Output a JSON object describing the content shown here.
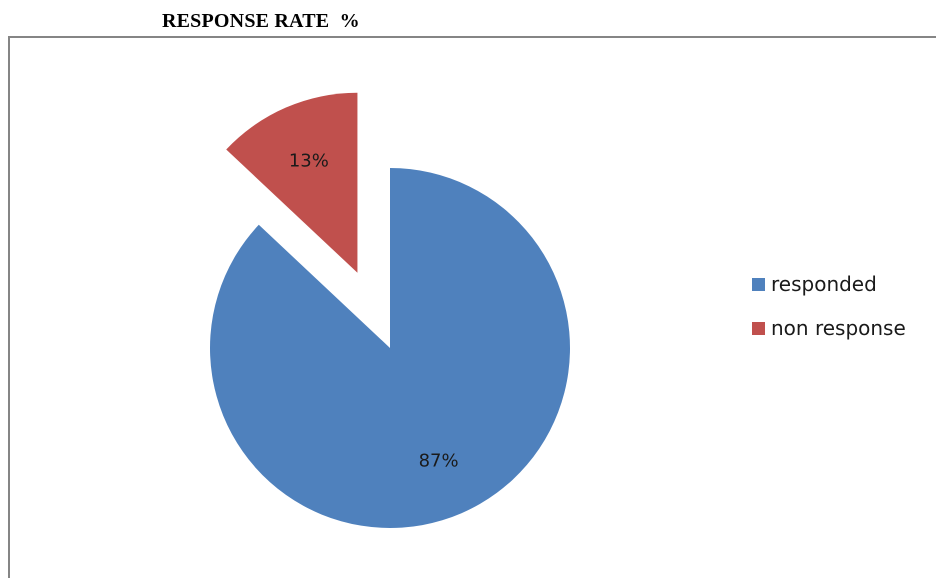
{
  "chart_data": {
    "type": "pie",
    "title": "RESPONSE RATE  %",
    "categories": [
      "responded",
      "non response"
    ],
    "values": [
      87,
      13
    ],
    "data_labels": [
      "87%",
      "13%"
    ],
    "colors": [
      "#4F81BD",
      "#C0504D"
    ],
    "exploded": [
      false,
      true
    ],
    "legend": "right"
  }
}
